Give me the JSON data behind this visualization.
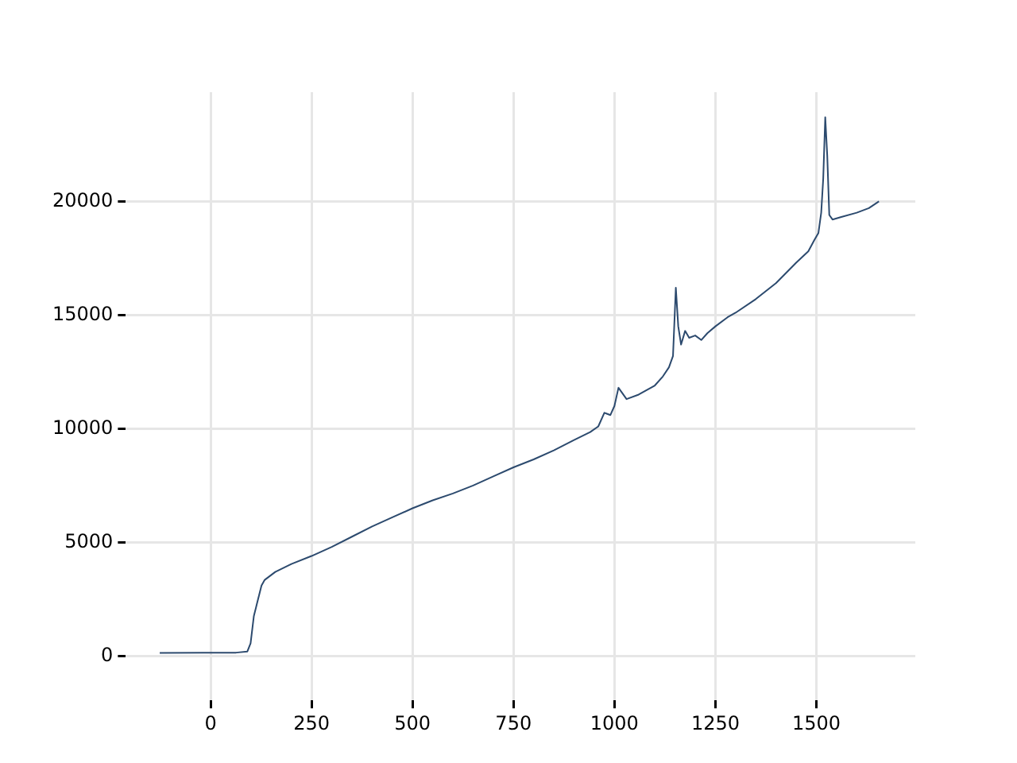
{
  "chart_data": {
    "type": "line",
    "x": [
      -126,
      0,
      63,
      91,
      99,
      107,
      114,
      126,
      134,
      160,
      200,
      250,
      300,
      350,
      400,
      450,
      500,
      550,
      600,
      650,
      700,
      750,
      800,
      850,
      900,
      940,
      960,
      975,
      990,
      1000,
      1010,
      1030,
      1060,
      1100,
      1120,
      1135,
      1145,
      1152,
      1158,
      1165,
      1175,
      1185,
      1200,
      1215,
      1230,
      1250,
      1280,
      1300,
      1350,
      1400,
      1450,
      1480,
      1495,
      1505,
      1512,
      1517,
      1522,
      1527,
      1532,
      1540,
      1560,
      1600,
      1630,
      1655
    ],
    "series": [
      {
        "color": "#2c4a6e",
        "values": [
          140,
          150,
          150,
          200,
          560,
          1750,
          2250,
          3100,
          3350,
          3700,
          4050,
          4400,
          4800,
          5250,
          5700,
          6100,
          6500,
          6850,
          7150,
          7500,
          7900,
          8300,
          8650,
          9050,
          9500,
          9850,
          10100,
          10700,
          10600,
          11000,
          11800,
          11300,
          11500,
          11900,
          12300,
          12700,
          13200,
          16200,
          14500,
          13700,
          14300,
          14000,
          14100,
          13900,
          14200,
          14500,
          14900,
          15100,
          15700,
          16400,
          17300,
          17800,
          18300,
          18600,
          19500,
          21000,
          23700,
          22000,
          19400,
          19200,
          19300,
          19500,
          19700,
          20000
        ]
      }
    ],
    "xlim": [
      -210,
      1745
    ],
    "ylim": [
      -1950,
      24800
    ],
    "xticks": [
      0,
      250,
      500,
      750,
      1000,
      1250,
      1500
    ],
    "yticks": [
      0,
      5000,
      10000,
      15000,
      20000
    ],
    "grid": true,
    "legend": false
  }
}
